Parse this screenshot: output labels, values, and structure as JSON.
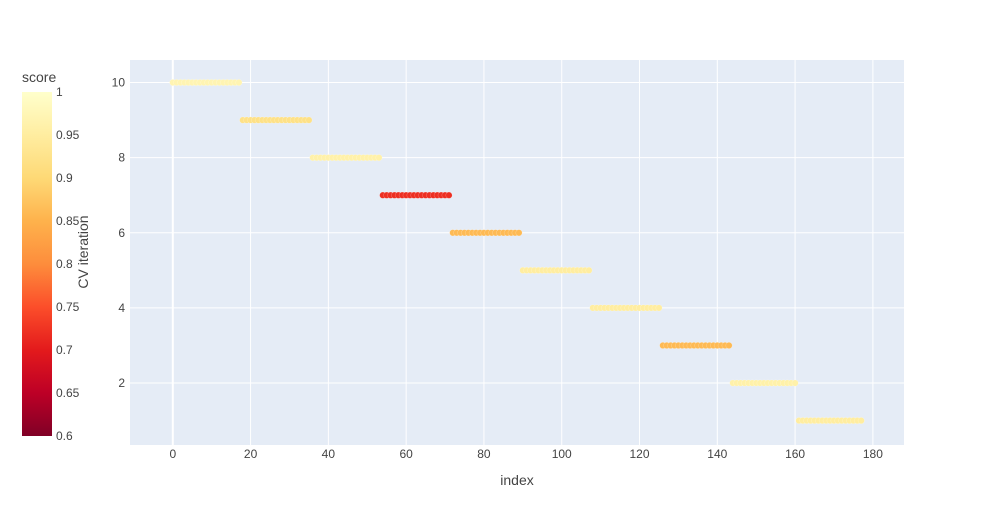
{
  "chart_data": {
    "type": "scatter",
    "xlabel": "index",
    "ylabel": "CV iteration",
    "xlim": [
      -11,
      188
    ],
    "ylim": [
      0.35,
      10.6
    ],
    "x_ticks": [
      0,
      20,
      40,
      60,
      80,
      100,
      120,
      140,
      160,
      180
    ],
    "y_ticks": [
      2,
      4,
      6,
      8,
      10
    ],
    "grid": true,
    "colorbar": {
      "title": "score",
      "range": [
        0.6,
        1.0
      ],
      "ticks": [
        0.6,
        0.65,
        0.7,
        0.75,
        0.8,
        0.85,
        0.9,
        0.95,
        1
      ],
      "tick_labels": [
        "0.6",
        "0.65",
        "0.7",
        "0.75",
        "0.8",
        "0.85",
        "0.9",
        "0.95",
        "1"
      ],
      "colorscale": [
        "#800026",
        "#bd0026",
        "#e31a1c",
        "#fc4e2a",
        "#fd8d3c",
        "#feb24c",
        "#fed976",
        "#ffeda0",
        "#ffffcc"
      ]
    },
    "series": [
      {
        "y": 10,
        "x_start": 0,
        "x_end": 17,
        "score": 0.97
      },
      {
        "y": 9,
        "x_start": 18,
        "x_end": 35,
        "score": 0.92
      },
      {
        "y": 8,
        "x_start": 36,
        "x_end": 53,
        "score": 0.96
      },
      {
        "y": 7,
        "x_start": 54,
        "x_end": 71,
        "score": 0.72
      },
      {
        "y": 6,
        "x_start": 72,
        "x_end": 89,
        "score": 0.86
      },
      {
        "y": 5,
        "x_start": 90,
        "x_end": 107,
        "score": 0.95
      },
      {
        "y": 4,
        "x_start": 108,
        "x_end": 125,
        "score": 0.95
      },
      {
        "y": 3,
        "x_start": 126,
        "x_end": 143,
        "score": 0.86
      },
      {
        "y": 2,
        "x_start": 144,
        "x_end": 160,
        "score": 0.96
      },
      {
        "y": 1,
        "x_start": 161,
        "x_end": 177,
        "score": 0.95
      }
    ]
  }
}
